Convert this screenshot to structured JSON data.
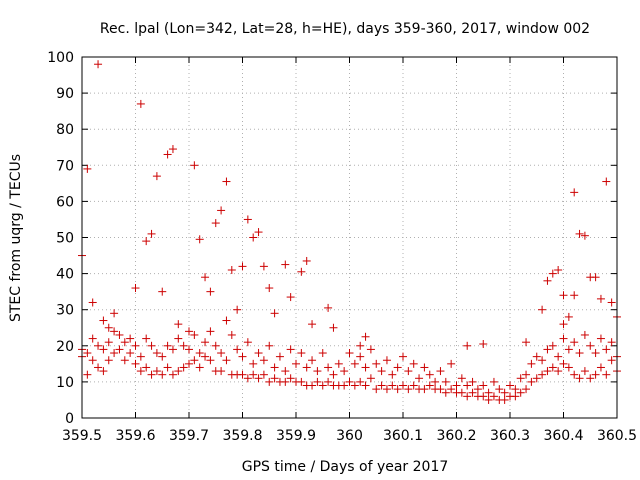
{
  "chart_data": {
    "type": "scatter",
    "title": "Rec. lpal (Lon=342, Lat=28, h=HE), days 359-360, 2017, window 002",
    "xlabel": "GPS time / Days of year 2017",
    "ylabel": "STEC from uqrg / TECUs",
    "xlim": [
      359.5,
      360.5
    ],
    "ylim": [
      0,
      100
    ],
    "x_ticks": [
      "359.5",
      "359.6",
      "359.7",
      "359.8",
      "359.9",
      "360",
      "360.1",
      "360.2",
      "360.3",
      "360.4",
      "360.5"
    ],
    "y_ticks": [
      "0",
      "10",
      "20",
      "30",
      "40",
      "50",
      "60",
      "70",
      "80",
      "90",
      "100"
    ],
    "grid": true,
    "marker": "+",
    "color": "#cc0000",
    "series": [
      {
        "points": [
          [
            359.5,
            45
          ],
          [
            359.51,
            69
          ],
          [
            359.52,
            32
          ],
          [
            359.53,
            98
          ],
          [
            359.54,
            27
          ],
          [
            359.56,
            29
          ],
          [
            359.55,
            25
          ],
          [
            359.6,
            36
          ],
          [
            359.61,
            87
          ],
          [
            359.62,
            49
          ],
          [
            359.63,
            51
          ],
          [
            359.64,
            67
          ],
          [
            359.65,
            35
          ],
          [
            359.66,
            73
          ],
          [
            359.67,
            74.5
          ],
          [
            359.68,
            26
          ],
          [
            359.7,
            24
          ],
          [
            359.71,
            70
          ],
          [
            359.72,
            49.5
          ],
          [
            359.73,
            39
          ],
          [
            359.74,
            35
          ],
          [
            359.75,
            54
          ],
          [
            359.76,
            57.5
          ],
          [
            359.77,
            65.5
          ],
          [
            359.78,
            41
          ],
          [
            359.79,
            30
          ],
          [
            359.8,
            42
          ],
          [
            359.81,
            55
          ],
          [
            359.82,
            50
          ],
          [
            359.83,
            51.5
          ],
          [
            359.84,
            42
          ],
          [
            359.85,
            36
          ],
          [
            359.86,
            29
          ],
          [
            359.88,
            42.5
          ],
          [
            359.89,
            33.5
          ],
          [
            359.91,
            40.5
          ],
          [
            359.92,
            43.5
          ],
          [
            359.93,
            26
          ],
          [
            359.96,
            30.5
          ],
          [
            359.97,
            25
          ],
          [
            360.02,
            20
          ],
          [
            360.03,
            22.5
          ],
          [
            360.22,
            20
          ],
          [
            360.25,
            20.5
          ],
          [
            360.33,
            21
          ],
          [
            360.36,
            30
          ],
          [
            360.37,
            38
          ],
          [
            360.38,
            40
          ],
          [
            360.39,
            41
          ],
          [
            360.4,
            34
          ],
          [
            360.41,
            28
          ],
          [
            360.42,
            62.5
          ],
          [
            360.43,
            51
          ],
          [
            360.44,
            50.5
          ],
          [
            360.45,
            39
          ],
          [
            360.46,
            39
          ],
          [
            360.47,
            33
          ],
          [
            360.48,
            65.5
          ],
          [
            360.49,
            32
          ],
          [
            360.5,
            28
          ],
          [
            360.42,
            34
          ],
          [
            360.4,
            26
          ],
          [
            359.5,
            19
          ],
          [
            359.5,
            17
          ],
          [
            359.51,
            18
          ],
          [
            359.51,
            12
          ],
          [
            359.52,
            22
          ],
          [
            359.52,
            16
          ],
          [
            359.53,
            20
          ],
          [
            359.53,
            14
          ],
          [
            359.54,
            19
          ],
          [
            359.54,
            13
          ],
          [
            359.55,
            21
          ],
          [
            359.55,
            16
          ],
          [
            359.56,
            18
          ],
          [
            359.56,
            24
          ],
          [
            359.57,
            23
          ],
          [
            359.57,
            19
          ],
          [
            359.58,
            21
          ],
          [
            359.58,
            16
          ],
          [
            359.59,
            22
          ],
          [
            359.59,
            18
          ],
          [
            359.6,
            20
          ],
          [
            359.6,
            15
          ],
          [
            359.61,
            17
          ],
          [
            359.61,
            13
          ],
          [
            359.62,
            22
          ],
          [
            359.62,
            14
          ],
          [
            359.63,
            20
          ],
          [
            359.63,
            12
          ],
          [
            359.64,
            18
          ],
          [
            359.64,
            13
          ],
          [
            359.65,
            17
          ],
          [
            359.65,
            12
          ],
          [
            359.66,
            20
          ],
          [
            359.66,
            14
          ],
          [
            359.67,
            19
          ],
          [
            359.67,
            12
          ],
          [
            359.68,
            22
          ],
          [
            359.68,
            13
          ],
          [
            359.69,
            20
          ],
          [
            359.69,
            14
          ],
          [
            359.7,
            19
          ],
          [
            359.7,
            15
          ],
          [
            359.71,
            23
          ],
          [
            359.71,
            16
          ],
          [
            359.72,
            18
          ],
          [
            359.72,
            14
          ],
          [
            359.73,
            21
          ],
          [
            359.73,
            17
          ],
          [
            359.74,
            24
          ],
          [
            359.74,
            16
          ],
          [
            359.75,
            20
          ],
          [
            359.75,
            13
          ],
          [
            359.76,
            18
          ],
          [
            359.76,
            13
          ],
          [
            359.77,
            27
          ],
          [
            359.77,
            16
          ],
          [
            359.78,
            23
          ],
          [
            359.78,
            12
          ],
          [
            359.79,
            19
          ],
          [
            359.79,
            12
          ],
          [
            359.8,
            17
          ],
          [
            359.8,
            12
          ],
          [
            359.81,
            21
          ],
          [
            359.81,
            11
          ],
          [
            359.82,
            15
          ],
          [
            359.82,
            12
          ],
          [
            359.83,
            18
          ],
          [
            359.83,
            11
          ],
          [
            359.84,
            16
          ],
          [
            359.84,
            12
          ],
          [
            359.85,
            20
          ],
          [
            359.85,
            10
          ],
          [
            359.86,
            14
          ],
          [
            359.86,
            11
          ],
          [
            359.87,
            17
          ],
          [
            359.87,
            10
          ],
          [
            359.88,
            13
          ],
          [
            359.88,
            10
          ],
          [
            359.89,
            19
          ],
          [
            359.89,
            11
          ],
          [
            359.9,
            15
          ],
          [
            359.9,
            10
          ],
          [
            359.91,
            18
          ],
          [
            359.91,
            10
          ],
          [
            359.92,
            14
          ],
          [
            359.92,
            9
          ],
          [
            359.93,
            16
          ],
          [
            359.93,
            9
          ],
          [
            359.94,
            13
          ],
          [
            359.94,
            10
          ],
          [
            359.95,
            18
          ],
          [
            359.95,
            9
          ],
          [
            359.96,
            14
          ],
          [
            359.96,
            10
          ],
          [
            359.97,
            12
          ],
          [
            359.97,
            9
          ],
          [
            359.98,
            15
          ],
          [
            359.98,
            9
          ],
          [
            359.99,
            13
          ],
          [
            359.99,
            9
          ],
          [
            360.0,
            18
          ],
          [
            360.0,
            10
          ],
          [
            360.01,
            15
          ],
          [
            360.01,
            9
          ],
          [
            360.02,
            17
          ],
          [
            360.02,
            10
          ],
          [
            360.03,
            14
          ],
          [
            360.03,
            9
          ],
          [
            360.04,
            19
          ],
          [
            360.04,
            11
          ],
          [
            360.05,
            15
          ],
          [
            360.05,
            8
          ],
          [
            360.06,
            13
          ],
          [
            360.06,
            9
          ],
          [
            360.07,
            16
          ],
          [
            360.07,
            8
          ],
          [
            360.08,
            12
          ],
          [
            360.08,
            9
          ],
          [
            360.09,
            14
          ],
          [
            360.09,
            8
          ],
          [
            360.1,
            17
          ],
          [
            360.1,
            9
          ],
          [
            360.11,
            13
          ],
          [
            360.11,
            8
          ],
          [
            360.12,
            15
          ],
          [
            360.12,
            9
          ],
          [
            360.13,
            11
          ],
          [
            360.13,
            8
          ],
          [
            360.14,
            14
          ],
          [
            360.14,
            8
          ],
          [
            360.15,
            12
          ],
          [
            360.15,
            9
          ],
          [
            360.16,
            10
          ],
          [
            360.16,
            8
          ],
          [
            360.17,
            13
          ],
          [
            360.17,
            8
          ],
          [
            360.18,
            10
          ],
          [
            360.18,
            7
          ],
          [
            360.19,
            15
          ],
          [
            360.19,
            8
          ],
          [
            360.2,
            9
          ],
          [
            360.2,
            7
          ],
          [
            360.21,
            11
          ],
          [
            360.21,
            7
          ],
          [
            360.22,
            9
          ],
          [
            360.22,
            6
          ],
          [
            360.23,
            10
          ],
          [
            360.23,
            7
          ],
          [
            360.24,
            8
          ],
          [
            360.24,
            6
          ],
          [
            360.25,
            9
          ],
          [
            360.25,
            6
          ],
          [
            360.26,
            7
          ],
          [
            360.26,
            5
          ],
          [
            360.27,
            10
          ],
          [
            360.27,
            6
          ],
          [
            360.28,
            8
          ],
          [
            360.28,
            5
          ],
          [
            360.29,
            7
          ],
          [
            360.29,
            5
          ],
          [
            360.3,
            9
          ],
          [
            360.3,
            6
          ],
          [
            360.31,
            8
          ],
          [
            360.31,
            6
          ],
          [
            360.32,
            11
          ],
          [
            360.32,
            7
          ],
          [
            360.33,
            12
          ],
          [
            360.33,
            8
          ],
          [
            360.34,
            15
          ],
          [
            360.34,
            10
          ],
          [
            360.35,
            17
          ],
          [
            360.35,
            11
          ],
          [
            360.36,
            16
          ],
          [
            360.36,
            12
          ],
          [
            360.37,
            19
          ],
          [
            360.37,
            13
          ],
          [
            360.38,
            20
          ],
          [
            360.38,
            14
          ],
          [
            360.39,
            17
          ],
          [
            360.39,
            13
          ],
          [
            360.4,
            22
          ],
          [
            360.4,
            15
          ],
          [
            360.41,
            19
          ],
          [
            360.41,
            14
          ],
          [
            360.42,
            21
          ],
          [
            360.42,
            12
          ],
          [
            360.43,
            18
          ],
          [
            360.43,
            11
          ],
          [
            360.44,
            23
          ],
          [
            360.44,
            13
          ],
          [
            360.45,
            20
          ],
          [
            360.45,
            11
          ],
          [
            360.46,
            18
          ],
          [
            360.46,
            12
          ],
          [
            360.47,
            22
          ],
          [
            360.47,
            14
          ],
          [
            360.48,
            19
          ],
          [
            360.48,
            12
          ],
          [
            360.49,
            21
          ],
          [
            360.49,
            16
          ],
          [
            360.5,
            17
          ],
          [
            360.5,
            13
          ]
        ]
      }
    ]
  }
}
